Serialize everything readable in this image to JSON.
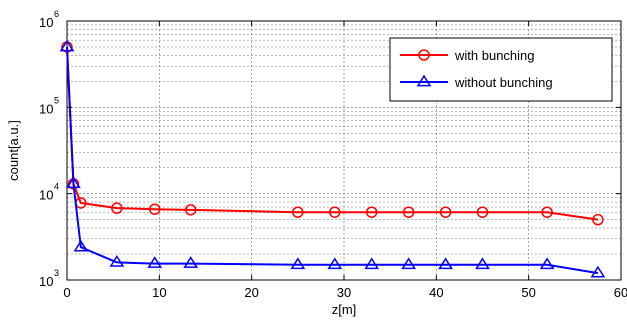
{
  "chart_data": {
    "type": "line",
    "title": "",
    "xlabel": "z[m]",
    "ylabel": "count[a.u.]",
    "xlim": [
      0,
      60
    ],
    "ylim": [
      1000,
      1000000
    ],
    "yscale": "log",
    "grid": true,
    "legend_position": "top-right",
    "x_ticks": [
      0,
      10,
      20,
      30,
      40,
      50,
      60
    ],
    "x_tick_labels": [
      "0",
      "10",
      "20",
      "30",
      "40",
      "50",
      "60"
    ],
    "y_ticks": [
      1000,
      10000,
      100000,
      1000000
    ],
    "y_tick_labels": [
      {
        "base": "10",
        "exp": "3"
      },
      {
        "base": "10",
        "exp": "4"
      },
      {
        "base": "10",
        "exp": "5"
      },
      {
        "base": "10",
        "exp": "6"
      }
    ],
    "series": [
      {
        "name": "with bunching",
        "color": "#ff0000",
        "marker": "circle",
        "x": [
          0,
          0.7,
          1.5,
          5.4,
          9.5,
          13.4,
          25,
          29,
          33,
          37,
          41,
          45,
          52,
          57.5
        ],
        "y": [
          500000,
          13000,
          7800,
          6800,
          6600,
          6500,
          6100,
          6100,
          6100,
          6100,
          6100,
          6100,
          6100,
          5000
        ]
      },
      {
        "name": "without bunching",
        "color": "#0000ff",
        "marker": "triangle",
        "x": [
          0,
          0.7,
          1.5,
          5.4,
          9.5,
          13.4,
          25,
          29,
          33,
          37,
          41,
          45,
          52,
          57.5
        ],
        "y": [
          500000,
          13000,
          2400,
          1600,
          1550,
          1550,
          1500,
          1500,
          1500,
          1500,
          1500,
          1500,
          1500,
          1200
        ]
      }
    ]
  }
}
